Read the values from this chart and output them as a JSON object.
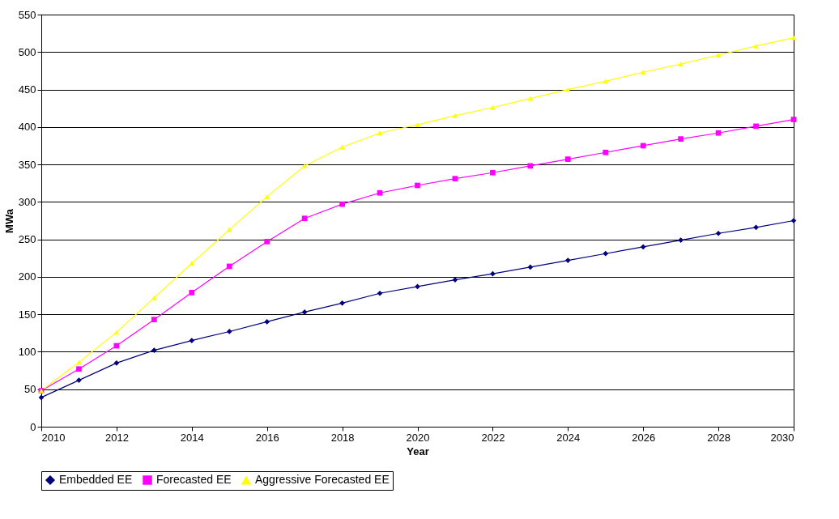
{
  "chart_data": {
    "type": "line",
    "xlabel": "Year",
    "ylabel": "MWa",
    "x": [
      2010,
      2011,
      2012,
      2013,
      2014,
      2015,
      2016,
      2017,
      2018,
      2019,
      2020,
      2021,
      2022,
      2023,
      2024,
      2025,
      2026,
      2027,
      2028,
      2029,
      2030
    ],
    "series": [
      {
        "name": "Embedded EE",
        "color": "#000080",
        "marker": "diamond",
        "values": [
          39,
          62,
          85,
          102,
          115,
          127,
          140,
          153,
          165,
          178,
          187,
          196,
          204,
          213,
          222,
          231,
          240,
          249,
          258,
          266,
          275
        ]
      },
      {
        "name": "Forecasted EE",
        "color": "#ff00ff",
        "marker": "square",
        "values": [
          48,
          77,
          108,
          143,
          179,
          214,
          247,
          278,
          297,
          312,
          322,
          331,
          339,
          348,
          357,
          366,
          375,
          384,
          392,
          401,
          410
        ]
      },
      {
        "name": "Aggressive Forecasted EE",
        "color": "#ffff00",
        "marker": "triangle",
        "values": [
          48,
          86,
          126,
          172,
          218,
          263,
          307,
          348,
          373,
          392,
          403,
          415,
          426,
          438,
          450,
          461,
          473,
          484,
          496,
          508,
          519
        ]
      }
    ],
    "xlim": [
      2010,
      2030
    ],
    "xticks": [
      2010,
      2012,
      2014,
      2016,
      2018,
      2020,
      2022,
      2024,
      2026,
      2028,
      2030
    ],
    "ylim": [
      0,
      550
    ],
    "yticks": [
      0,
      50,
      100,
      150,
      200,
      250,
      300,
      350,
      400,
      450,
      500,
      550
    ],
    "grid": "y",
    "legend": "bottom",
    "line_style": "solid"
  }
}
